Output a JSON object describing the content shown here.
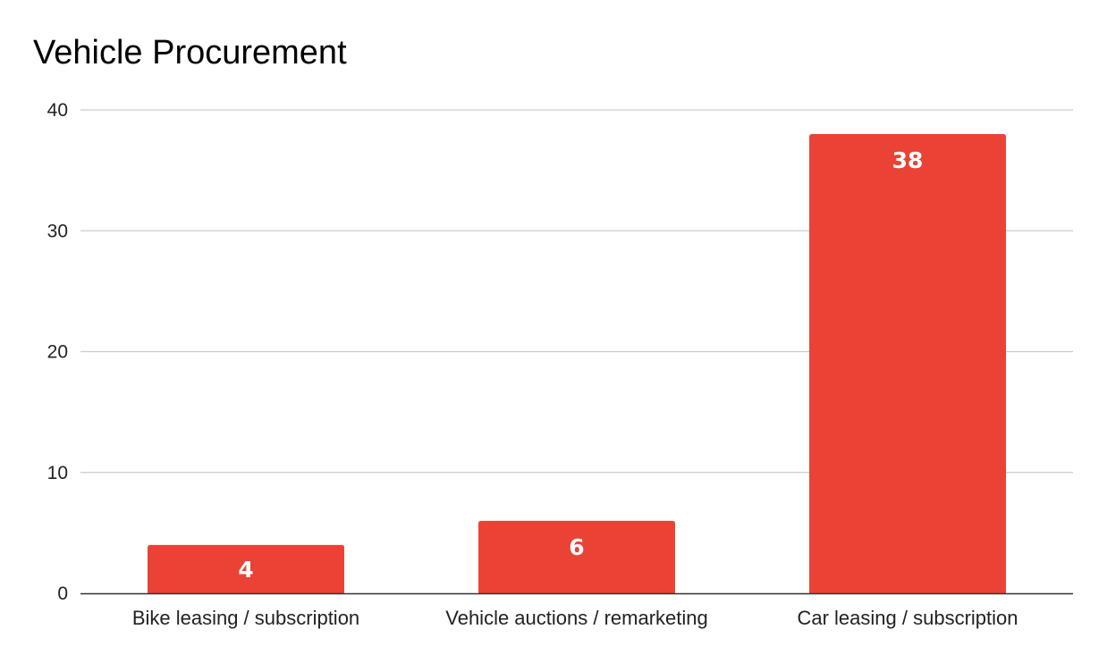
{
  "chart_data": {
    "type": "bar",
    "title": "Vehicle Procurement",
    "categories": [
      "Bike leasing / subscription",
      "Vehicle auctions / remarketing",
      "Car leasing / subscription"
    ],
    "values": [
      4,
      6,
      38
    ],
    "data_labels": [
      "4",
      "6",
      "38"
    ],
    "ylim": [
      0,
      40
    ],
    "yticks": [
      "0",
      "10",
      "20",
      "30",
      "40"
    ],
    "xlabel": "",
    "ylabel": "",
    "grid": true,
    "legend": "none",
    "bar_color": "#ea4335"
  }
}
